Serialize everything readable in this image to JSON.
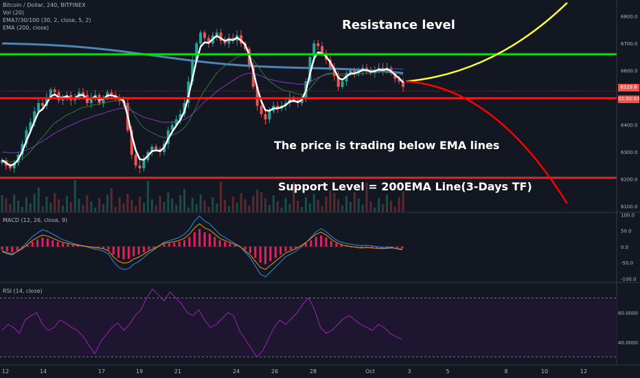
{
  "header": {
    "title": "Bitcoin / Dollar, 240, BITFINEX",
    "indicators": [
      "Vol (20)",
      "EMA7/30/100 (30, 2, close, 5, 2)",
      "EMA (200, close)"
    ]
  },
  "panes": {
    "macd_label": "MACD (12, 26, close, 9)",
    "rsi_label": "RSI (14, close)"
  },
  "annotations": {
    "resistance": "Resistance level",
    "below_ema": "The price is trading below EMA lines",
    "support": "Support Level = 200EMA Line(3-Days TF)"
  },
  "price_tags": {
    "last_price": "6539.6",
    "countdown": "02:50:03"
  },
  "colors": {
    "background": "#131722",
    "bull": "#26a69a",
    "bear": "#ef5350",
    "resistance_line": "#00e600",
    "support_line": "#ff1a1a",
    "ema200": "#4f86b8",
    "ema_fast": "#ffffff",
    "projection_up": "#ffff33",
    "projection_down": "#ff0000",
    "macd_hist": "#e91e63",
    "rsi": "#9c27b0"
  },
  "chart_data": [
    {
      "type": "candlestick",
      "title": "Bitcoin / Dollar, 240, BITFINEX",
      "x_ticks": [
        "12",
        "14",
        "17",
        "19",
        "21",
        "24",
        "26",
        "28",
        "Oct",
        "3",
        "5",
        "8",
        "10",
        "12"
      ],
      "y_ticks": [
        "6800.0",
        "6700.0",
        "6600.0",
        "6500.0",
        "6400.0",
        "6300.0",
        "6200.0",
        "6100.0"
      ],
      "ylim": [
        6080,
        6860
      ],
      "horizontal_levels": [
        {
          "label": "Resistance level",
          "value": 6660
        },
        {
          "label": "Support Level = 200EMA Line(3-Days TF)",
          "value": 6205
        },
        {
          "value": 6498
        }
      ],
      "close_series": [
        6270,
        6250,
        6240,
        6260,
        6290,
        6330,
        6380,
        6410,
        6450,
        6480,
        6470,
        6500,
        6530,
        6520,
        6490,
        6500,
        6510,
        6490,
        6500,
        6520,
        6510,
        6480,
        6500,
        6510,
        6480,
        6500,
        6520,
        6510,
        6500,
        6490,
        6480,
        6380,
        6290,
        6250,
        6240,
        6270,
        6300,
        6320,
        6310,
        6300,
        6330,
        6380,
        6400,
        6420,
        6440,
        6480,
        6560,
        6640,
        6700,
        6740,
        6720,
        6700,
        6730,
        6740,
        6710,
        6700,
        6720,
        6710,
        6730,
        6700,
        6680,
        6620,
        6540,
        6470,
        6440,
        6420,
        6450,
        6470,
        6460,
        6470,
        6480,
        6500,
        6490,
        6480,
        6500,
        6560,
        6650,
        6700,
        6690,
        6660,
        6640,
        6610,
        6580,
        6540,
        6560,
        6590,
        6600,
        6590,
        6600,
        6610,
        6600,
        6590,
        6600,
        6610,
        6600,
        6610,
        6590,
        6570,
        6560,
        6540
      ]
    },
    {
      "type": "bar",
      "title": "MACD (12, 26, close, 9)",
      "y_ticks": [
        "100.0",
        "50.0",
        "0.0",
        "-50.0",
        "-100.0"
      ],
      "ylim": [
        -110,
        105
      ],
      "histogram": [
        -10,
        -15,
        -18,
        -12,
        -5,
        5,
        15,
        22,
        28,
        25,
        20,
        15,
        10,
        8,
        5,
        3,
        2,
        0,
        -2,
        -3,
        -5,
        -10,
        -25,
        -35,
        -40,
        -38,
        -30,
        -25,
        -18,
        -10,
        -5,
        2,
        8,
        10,
        12,
        15,
        20,
        30,
        45,
        55,
        45,
        40,
        30,
        20,
        15,
        10,
        5,
        0,
        -10,
        -20,
        -35,
        -50,
        -55,
        -45,
        -35,
        -25,
        -15,
        -10,
        -5,
        2,
        10,
        20,
        30,
        35,
        28,
        18,
        10,
        5,
        2,
        0,
        -2,
        -3,
        -2,
        -3,
        -4,
        -5,
        -4,
        -3,
        -5,
        -6
      ]
    },
    {
      "type": "line",
      "title": "RSI (14, close)",
      "y_ticks": [
        "60.0000",
        "40.0000"
      ],
      "ylim": [
        25,
        80
      ],
      "values": [
        48,
        52,
        50,
        46,
        55,
        58,
        60,
        52,
        48,
        50,
        55,
        53,
        50,
        48,
        44,
        38,
        32,
        40,
        45,
        50,
        53,
        48,
        52,
        58,
        62,
        70,
        76,
        72,
        68,
        74,
        70,
        66,
        60,
        58,
        62,
        55,
        50,
        52,
        56,
        60,
        58,
        48,
        42,
        36,
        30,
        34,
        42,
        50,
        55,
        52,
        56,
        60,
        66,
        70,
        62,
        50,
        46,
        48,
        52,
        56,
        58,
        55,
        52,
        50,
        48,
        52,
        50,
        46,
        44,
        42
      ]
    }
  ]
}
